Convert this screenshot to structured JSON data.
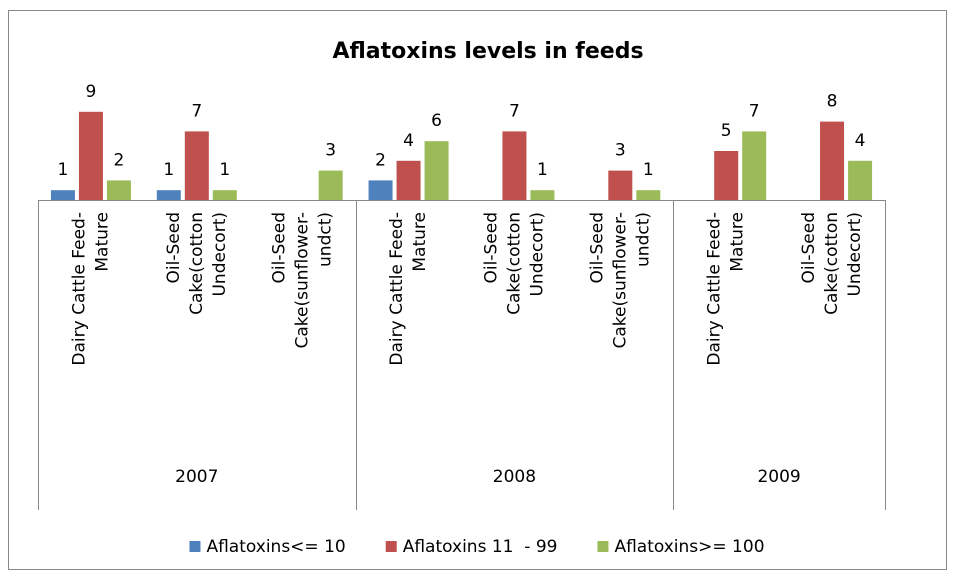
{
  "chart_data": {
    "type": "bar",
    "title": "Aflatoxins levels in feeds",
    "groups": [
      {
        "name": "2007",
        "categories": [
          "Dairy Cattle Feed-\nMature",
          "Oil-Seed\nCake(cotton\nUndecort)",
          "Oil-Seed\nCake(sunflower-\nundct)"
        ]
      },
      {
        "name": "2008",
        "categories": [
          "Dairy Cattle Feed-\nMature",
          "Oil-Seed\nCake(cotton\nUndecort)",
          "Oil-Seed\nCake(sunflower-\nundct)"
        ]
      },
      {
        "name": "2009",
        "categories": [
          "Dairy Cattle Feed-\nMature",
          "Oil-Seed\nCake(cotton\nUndecort)"
        ]
      }
    ],
    "series": [
      {
        "name": "Aflatoxins<= 10",
        "color": "#4f81bd",
        "values": [
          1,
          1,
          null,
          2,
          null,
          null,
          null,
          null
        ]
      },
      {
        "name": "Aflatoxins 11  - 99",
        "color": "#c0504d",
        "values": [
          9,
          7,
          null,
          4,
          7,
          3,
          5,
          8
        ]
      },
      {
        "name": "Aflatoxins>= 100",
        "color": "#9bbb59",
        "values": [
          2,
          1,
          3,
          6,
          1,
          1,
          7,
          4
        ]
      }
    ],
    "ylim": [
      0,
      10
    ],
    "legend": "bottom"
  }
}
